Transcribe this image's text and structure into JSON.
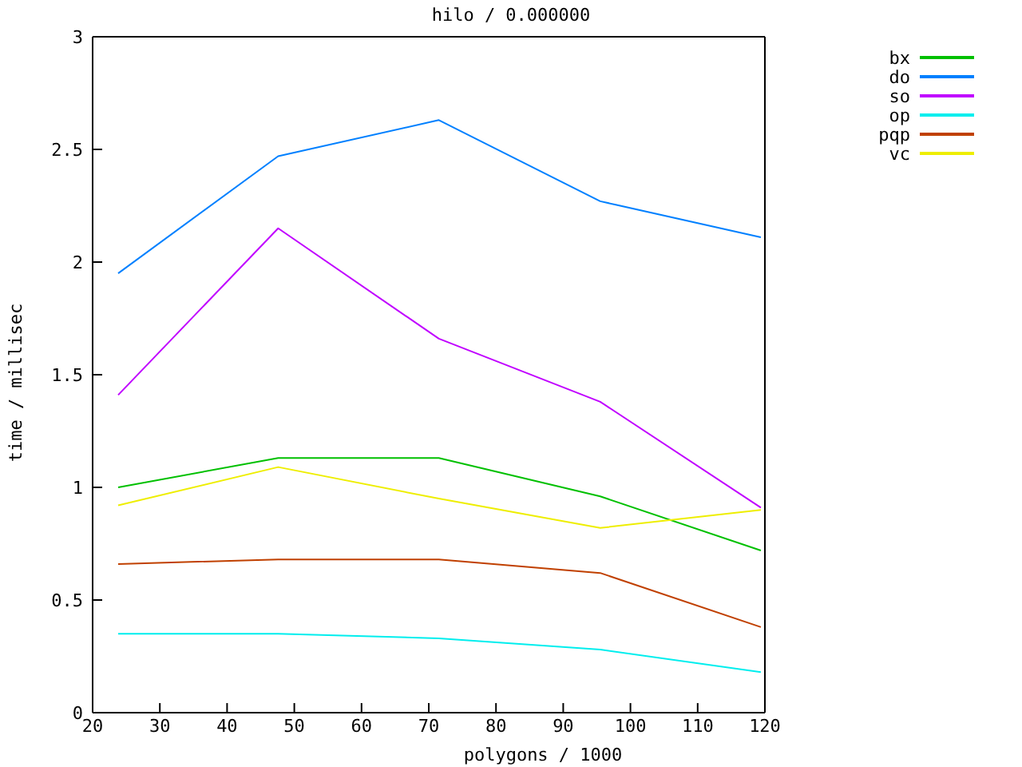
{
  "chart_data": {
    "type": "line",
    "title": "hilo / 0.000000",
    "xlabel": "polygons / 1000",
    "ylabel": "time / millisec",
    "x": [
      23.8,
      47.6,
      71.5,
      95.5,
      119.4
    ],
    "series": [
      {
        "name": "bx",
        "color": "#00c000",
        "values": [
          1.0,
          1.13,
          1.13,
          0.96,
          0.72
        ]
      },
      {
        "name": "do",
        "color": "#0080ff",
        "values": [
          1.95,
          2.47,
          2.63,
          2.27,
          2.11
        ]
      },
      {
        "name": "so",
        "color": "#c000ff",
        "values": [
          1.41,
          2.15,
          1.66,
          1.38,
          0.91
        ]
      },
      {
        "name": "op",
        "color": "#00eeee",
        "values": [
          0.35,
          0.35,
          0.33,
          0.28,
          0.18
        ]
      },
      {
        "name": "pqp",
        "color": "#c04000",
        "values": [
          0.66,
          0.68,
          0.68,
          0.62,
          0.38
        ]
      },
      {
        "name": "vc",
        "color": "#eeee00",
        "values": [
          0.92,
          1.09,
          0.95,
          0.82,
          0.9
        ]
      }
    ],
    "xlim": [
      20,
      120
    ],
    "xticks": [
      20,
      30,
      40,
      50,
      60,
      70,
      80,
      90,
      100,
      110,
      120
    ],
    "ylim": [
      0,
      3
    ],
    "yticks": [
      0,
      0.5,
      1,
      1.5,
      2,
      2.5,
      3
    ],
    "grid": false,
    "legend": "top right",
    "marker": "none",
    "line_style": "solid"
  }
}
